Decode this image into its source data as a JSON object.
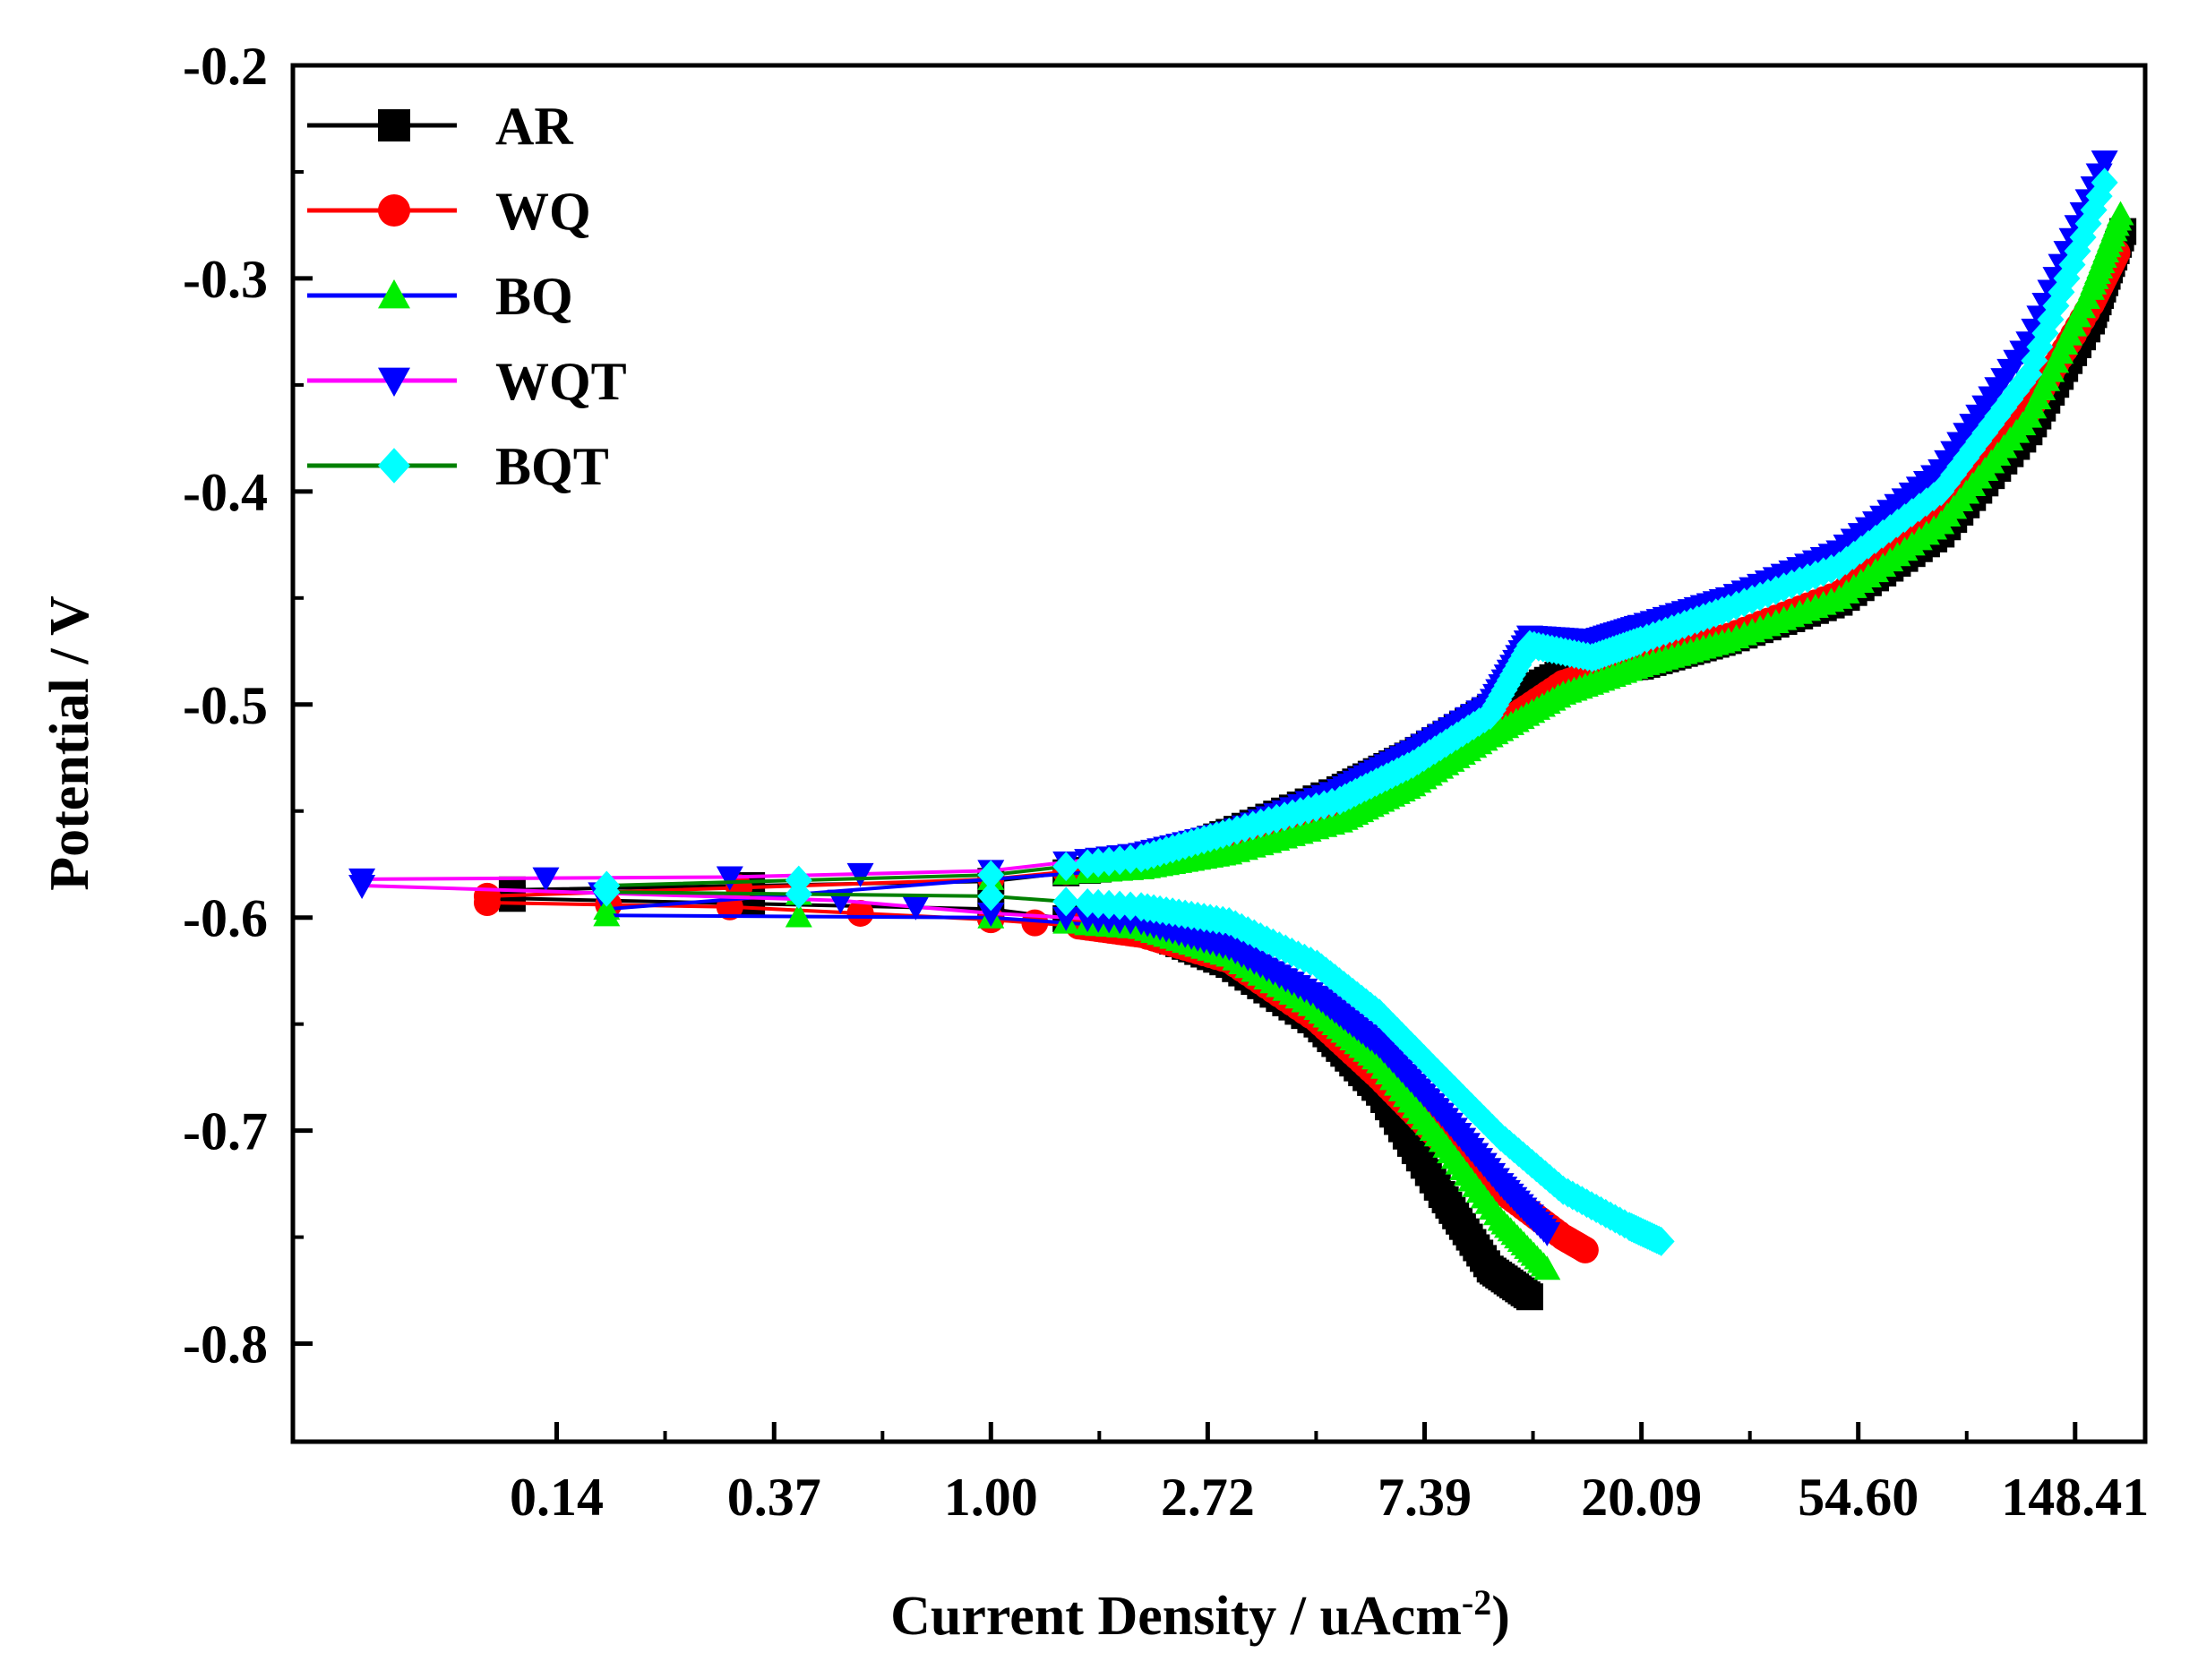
{
  "chart_data": {
    "type": "line",
    "title": "",
    "xlabel": "Current Density / uAcm",
    "xlabel_sup": "-2",
    "xlabel_tail": ")",
    "ylabel": "Potential / V",
    "x_scale": "log",
    "xlim": [
      0.04,
      205
    ],
    "ylim": [
      -0.846,
      -0.2
    ],
    "x_ticks": [
      0.135,
      0.368,
      1.0,
      2.718,
      7.389,
      20.09,
      54.6,
      148.41
    ],
    "x_tick_labels": [
      "0.14",
      "0.37",
      "1.00",
      "2.72",
      "7.39",
      "20.09",
      "54.60",
      "148.41"
    ],
    "y_ticks": [
      -0.2,
      -0.3,
      -0.4,
      -0.5,
      -0.6,
      -0.7,
      -0.8
    ],
    "y_tick_labels": [
      "-0.2",
      "-0.3",
      "-0.4",
      "-0.5",
      "-0.6",
      "-0.7",
      "-0.8"
    ],
    "legend_position": "top-left",
    "series": [
      {
        "name": "AR",
        "line_color": "#000000",
        "marker_color": "#000000",
        "marker": "square",
        "anodic": [
          [
            0.11,
            -0.587
          ],
          [
            1.0,
            -0.583
          ],
          [
            2.0,
            -0.575
          ],
          [
            3.0,
            -0.56
          ],
          [
            5.0,
            -0.54
          ],
          [
            7.0,
            -0.523
          ],
          [
            10.0,
            -0.502
          ],
          [
            14.0,
            -0.485
          ],
          [
            20.0,
            -0.482
          ],
          [
            30.0,
            -0.47
          ],
          [
            50.0,
            -0.452
          ],
          [
            80.0,
            -0.42
          ],
          [
            120.0,
            -0.372
          ],
          [
            160.0,
            -0.32
          ],
          [
            185.0,
            -0.278
          ]
        ],
        "cathodic": [
          [
            0.11,
            -0.591
          ],
          [
            1.0,
            -0.596
          ],
          [
            2.0,
            -0.605
          ],
          [
            3.0,
            -0.622
          ],
          [
            4.5,
            -0.65
          ],
          [
            6.0,
            -0.682
          ],
          [
            8.0,
            -0.73
          ],
          [
            10.0,
            -0.765
          ],
          [
            12.0,
            -0.778
          ]
        ]
      },
      {
        "name": "WQ",
        "line_color": "#ff0000",
        "marker_color": "#ff0000",
        "marker": "circle",
        "anodic": [
          [
            0.098,
            -0.59
          ],
          [
            1.0,
            -0.582
          ],
          [
            2.0,
            -0.575
          ],
          [
            3.0,
            -0.566
          ],
          [
            5.0,
            -0.55
          ],
          [
            7.0,
            -0.535
          ],
          [
            10.0,
            -0.513
          ],
          [
            14.0,
            -0.49
          ],
          [
            20.0,
            -0.478
          ],
          [
            30.0,
            -0.468
          ],
          [
            50.0,
            -0.448
          ],
          [
            80.0,
            -0.412
          ],
          [
            120.0,
            -0.362
          ],
          [
            160.0,
            -0.312
          ],
          [
            180.0,
            -0.288
          ]
        ],
        "cathodic": [
          [
            0.098,
            -0.593
          ],
          [
            0.3,
            -0.595
          ],
          [
            1.0,
            -0.601
          ],
          [
            1.5,
            -0.604
          ],
          [
            2.0,
            -0.608
          ],
          [
            3.0,
            -0.62
          ],
          [
            4.5,
            -0.648
          ],
          [
            6.0,
            -0.675
          ],
          [
            8.0,
            -0.705
          ],
          [
            10.5,
            -0.728
          ],
          [
            14.0,
            -0.75
          ],
          [
            15.5,
            -0.756
          ]
        ]
      },
      {
        "name": "BQ",
        "line_color": "#0000ff",
        "marker_color": "#00ee00",
        "marker": "triangle",
        "anodic": [
          [
            0.17,
            -0.596
          ],
          [
            1.0,
            -0.582
          ],
          [
            2.0,
            -0.577
          ],
          [
            3.0,
            -0.57
          ],
          [
            5.0,
            -0.555
          ],
          [
            7.0,
            -0.538
          ],
          [
            10.0,
            -0.515
          ],
          [
            14.0,
            -0.495
          ],
          [
            20.0,
            -0.482
          ],
          [
            30.0,
            -0.47
          ],
          [
            50.0,
            -0.45
          ],
          [
            80.0,
            -0.415
          ],
          [
            120.0,
            -0.365
          ],
          [
            160.0,
            -0.305
          ],
          [
            183.0,
            -0.27
          ]
        ],
        "cathodic": [
          [
            0.17,
            -0.599
          ],
          [
            1.0,
            -0.6
          ],
          [
            2.0,
            -0.605
          ],
          [
            3.0,
            -0.618
          ],
          [
            4.5,
            -0.643
          ],
          [
            6.0,
            -0.668
          ],
          [
            8.0,
            -0.705
          ],
          [
            10.5,
            -0.742
          ],
          [
            13.0,
            -0.765
          ]
        ]
      },
      {
        "name": "WQT",
        "line_color": "#ff00ff",
        "marker_color": "#0000ff",
        "marker": "triangle-down",
        "anodic": [
          [
            0.055,
            -0.582
          ],
          [
            0.3,
            -0.581
          ],
          [
            1.0,
            -0.578
          ],
          [
            2.0,
            -0.57
          ],
          [
            3.0,
            -0.56
          ],
          [
            5.0,
            -0.54
          ],
          [
            7.0,
            -0.522
          ],
          [
            10.0,
            -0.5
          ],
          [
            12.0,
            -0.468
          ],
          [
            16.0,
            -0.47
          ],
          [
            20.0,
            -0.463
          ],
          [
            30.0,
            -0.45
          ],
          [
            50.0,
            -0.428
          ],
          [
            80.0,
            -0.39
          ],
          [
            120.0,
            -0.33
          ],
          [
            170.0,
            -0.245
          ]
        ],
        "cathodic": [
          [
            0.055,
            -0.585
          ],
          [
            0.5,
            -0.592
          ],
          [
            1.0,
            -0.598
          ],
          [
            2.0,
            -0.602
          ],
          [
            3.0,
            -0.614
          ],
          [
            4.5,
            -0.637
          ],
          [
            6.0,
            -0.66
          ],
          [
            8.0,
            -0.692
          ],
          [
            10.5,
            -0.725
          ],
          [
            13.0,
            -0.748
          ]
        ]
      },
      {
        "name": "BQT",
        "line_color": "#008000",
        "marker_color": "#00ffff",
        "marker": "diamond",
        "anodic": [
          [
            0.17,
            -0.585
          ],
          [
            1.0,
            -0.58
          ],
          [
            2.0,
            -0.572
          ],
          [
            3.0,
            -0.56
          ],
          [
            5.0,
            -0.545
          ],
          [
            7.0,
            -0.528
          ],
          [
            10.0,
            -0.505
          ],
          [
            12.0,
            -0.472
          ],
          [
            16.0,
            -0.478
          ],
          [
            20.0,
            -0.47
          ],
          [
            30.0,
            -0.455
          ],
          [
            50.0,
            -0.435
          ],
          [
            80.0,
            -0.4
          ],
          [
            120.0,
            -0.345
          ],
          [
            170.0,
            -0.255
          ]
        ],
        "cathodic": [
          [
            0.17,
            -0.588
          ],
          [
            1.0,
            -0.59
          ],
          [
            2.0,
            -0.595
          ],
          [
            3.0,
            -0.602
          ],
          [
            4.5,
            -0.622
          ],
          [
            6.0,
            -0.645
          ],
          [
            8.0,
            -0.675
          ],
          [
            10.5,
            -0.703
          ],
          [
            14.0,
            -0.728
          ],
          [
            19.0,
            -0.745
          ],
          [
            22.0,
            -0.752
          ]
        ]
      }
    ]
  }
}
